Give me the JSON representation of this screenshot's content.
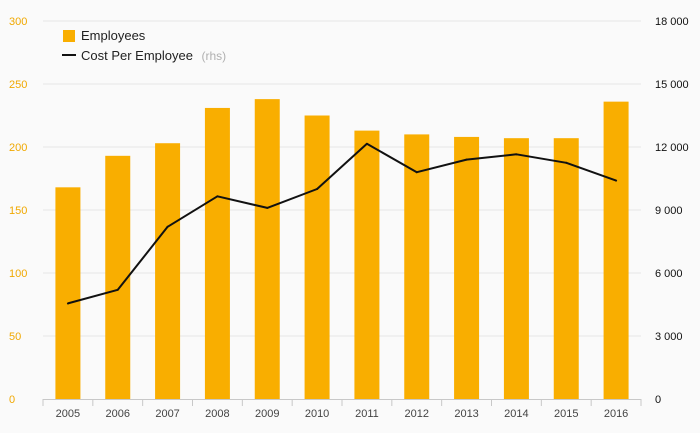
{
  "chart_data": {
    "type": "bar",
    "categories": [
      "2005",
      "2006",
      "2007",
      "2008",
      "2009",
      "2010",
      "2011",
      "2012",
      "2013",
      "2014",
      "2015",
      "2016"
    ],
    "series": [
      {
        "name": "Employees",
        "type": "bar",
        "axis": "left",
        "color": "#f9ae00",
        "values": [
          168,
          193,
          203,
          231,
          238,
          225,
          213,
          210,
          208,
          207,
          207,
          236
        ]
      },
      {
        "name": "Cost Per Employee",
        "name_suffix": "(rhs)",
        "type": "line",
        "axis": "right",
        "color": "#111111",
        "values": [
          4550,
          5200,
          8200,
          9650,
          9100,
          10000,
          12150,
          10800,
          11400,
          11650,
          11250,
          10400
        ]
      }
    ],
    "y_left": {
      "ylim": [
        0,
        300
      ],
      "ticks": [
        0,
        50,
        100,
        150,
        200,
        250,
        300
      ],
      "tick_labels": [
        "0",
        "50",
        "100",
        "150",
        "200",
        "250",
        "300"
      ],
      "tick_color": "#f0a800"
    },
    "y_right": {
      "ylim": [
        0,
        18000
      ],
      "ticks": [
        0,
        3000,
        6000,
        9000,
        12000,
        15000,
        18000
      ],
      "tick_labels": [
        "0",
        "3 000",
        "6 000",
        "9 000",
        "12 000",
        "15 000",
        "18 000"
      ],
      "tick_color": "#111111"
    },
    "grid": true,
    "legend": "top-left",
    "title": "",
    "xlabel": "",
    "ylabel": ""
  }
}
